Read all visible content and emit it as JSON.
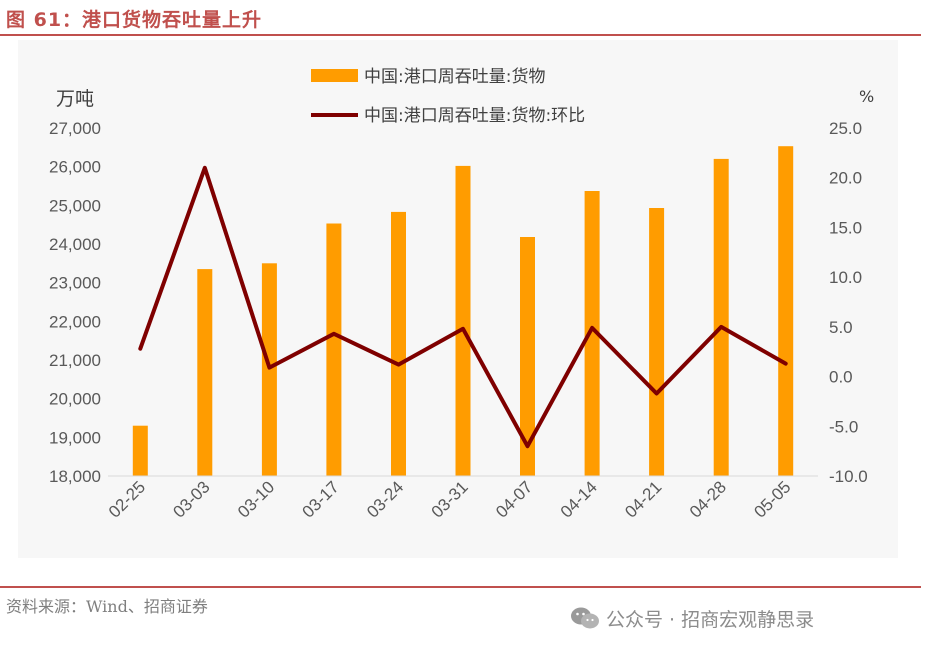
{
  "title": "图 61：港口货物吞吐量上升",
  "source": "资料来源：Wind、招商证券",
  "watermark": {
    "text": "公众号 · 招商宏观静思录",
    "icon": "wechat-icon"
  },
  "colors": {
    "accent": "#c0504d",
    "bar": "#ff9c00",
    "line": "#7f0000"
  },
  "chart_data": {
    "type": "bar+line",
    "categories": [
      "02-25",
      "03-03",
      "03-10",
      "03-17",
      "03-24",
      "03-31",
      "04-07",
      "04-14",
      "04-21",
      "04-28",
      "05-05"
    ],
    "series": [
      {
        "name": "中国:港口周吞吐量:货物",
        "type": "bar",
        "axis": "left",
        "values": [
          19300,
          23350,
          23500,
          24530,
          24830,
          26020,
          24180,
          25370,
          24930,
          26200,
          26530
        ]
      },
      {
        "name": "中国:港口周吞吐量:货物:环比",
        "type": "line",
        "axis": "right",
        "values": [
          2.8,
          21.0,
          0.9,
          4.3,
          1.2,
          4.8,
          -7.0,
          4.9,
          -1.7,
          5.0,
          1.3
        ]
      }
    ],
    "left_axis": {
      "unit": "万吨",
      "ylim": [
        18000,
        27000
      ],
      "ticks": [
        "18,000",
        "19,000",
        "20,000",
        "21,000",
        "22,000",
        "23,000",
        "24,000",
        "25,000",
        "26,000",
        "27,000"
      ]
    },
    "right_axis": {
      "unit": "%",
      "ylim": [
        -10,
        25
      ],
      "ticks": [
        "-10.0",
        "-5.0",
        "0.0",
        "5.0",
        "10.0",
        "15.0",
        "20.0",
        "25.0"
      ]
    },
    "legend": "top-center",
    "grid": false
  }
}
